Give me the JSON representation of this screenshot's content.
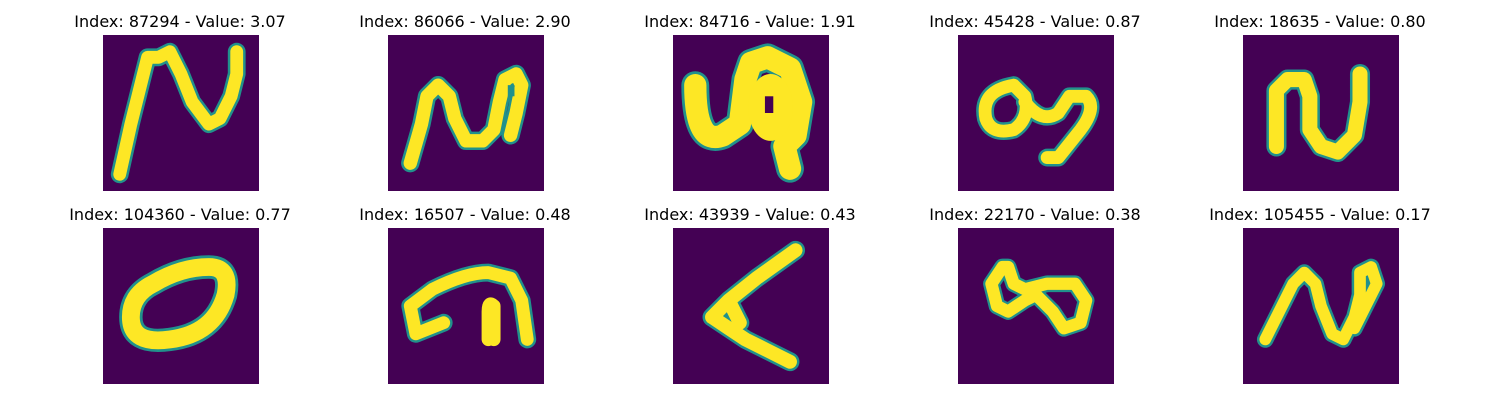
{
  "panels": [
    {
      "index_label": "Index: 87294 - Value: 3.07"
    },
    {
      "index_label": "Index: 86066 - Value: 2.90"
    },
    {
      "index_label": "Index: 84716 - Value: 1.91"
    },
    {
      "index_label": "Index: 45428 - Value: 0.87"
    },
    {
      "index_label": "Index: 18635 - Value: 0.80"
    },
    {
      "index_label": "Index: 104360 - Value: 0.77"
    },
    {
      "index_label": "Index: 16507 - Value: 0.48"
    },
    {
      "index_label": "Index: 43939 - Value: 0.43"
    },
    {
      "index_label": "Index: 22170 - Value: 0.38"
    },
    {
      "index_label": "Index: 105455 - Value: 0.17"
    }
  ],
  "colors": {
    "background": "#440154",
    "stroke": "#fde725",
    "edge": "#21918c"
  }
}
